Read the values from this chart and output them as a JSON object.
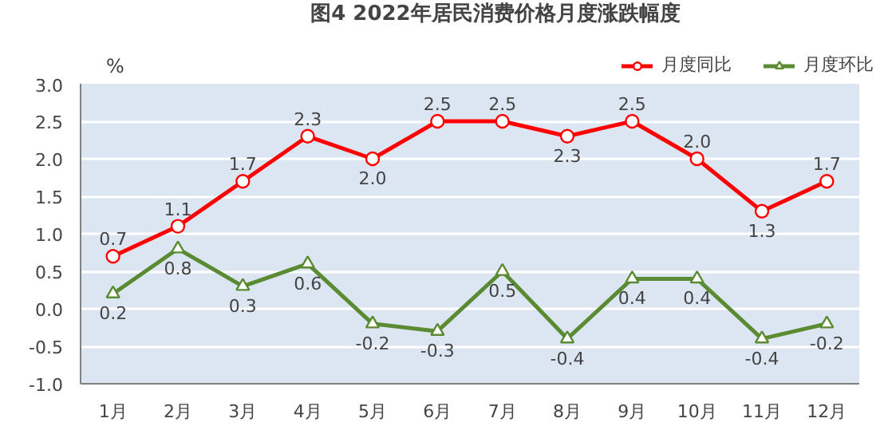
{
  "chart_data": {
    "type": "line",
    "title": "图4     2022年居民消费价格月度涨跌幅度",
    "ylabel": "%",
    "categories": [
      "1月",
      "2月",
      "3月",
      "4月",
      "5月",
      "6月",
      "7月",
      "8月",
      "9月",
      "10月",
      "11月",
      "12月"
    ],
    "series": [
      {
        "name": "月度同比",
        "color": "#ff0000",
        "marker": "circle",
        "values": [
          0.7,
          1.1,
          1.7,
          2.3,
          2.0,
          2.5,
          2.5,
          2.3,
          2.5,
          2.0,
          1.3,
          1.7
        ],
        "value_labels": [
          "0.7",
          "1.1",
          "1.7",
          "2.3",
          "2.0",
          "2.5",
          "2.5",
          "2.3",
          "2.5",
          "2.0",
          "1.3",
          "1.7"
        ]
      },
      {
        "name": "月度环比",
        "color": "#5a8a32",
        "marker": "triangle",
        "values": [
          0.2,
          0.8,
          0.3,
          0.6,
          -0.2,
          -0.3,
          0.5,
          -0.4,
          0.4,
          0.4,
          -0.4,
          -0.2
        ],
        "value_labels": [
          "0.2",
          "0.8",
          "0.3",
          "0.6",
          "-0.2",
          "-0.3",
          "0.5",
          "-0.4",
          "0.4",
          "0.4",
          "-0.4",
          "-0.2"
        ]
      }
    ],
    "ylim": [
      -1.0,
      3.0
    ],
    "yticks": [
      {
        "value": -1.0,
        "label": "-1.0"
      },
      {
        "value": -0.5,
        "label": "-0.5"
      },
      {
        "value": 0.0,
        "label": "0.0"
      },
      {
        "value": 0.5,
        "label": "0.5"
      },
      {
        "value": 1.0,
        "label": "1.0"
      },
      {
        "value": 1.5,
        "label": "1.5"
      },
      {
        "value": 2.0,
        "label": "2.0"
      },
      {
        "value": 2.5,
        "label": "2.5"
      },
      {
        "value": 3.0,
        "label": "3.0"
      }
    ],
    "grid": "y",
    "legend": "top right",
    "line_style": "solid",
    "data_labels": true
  }
}
